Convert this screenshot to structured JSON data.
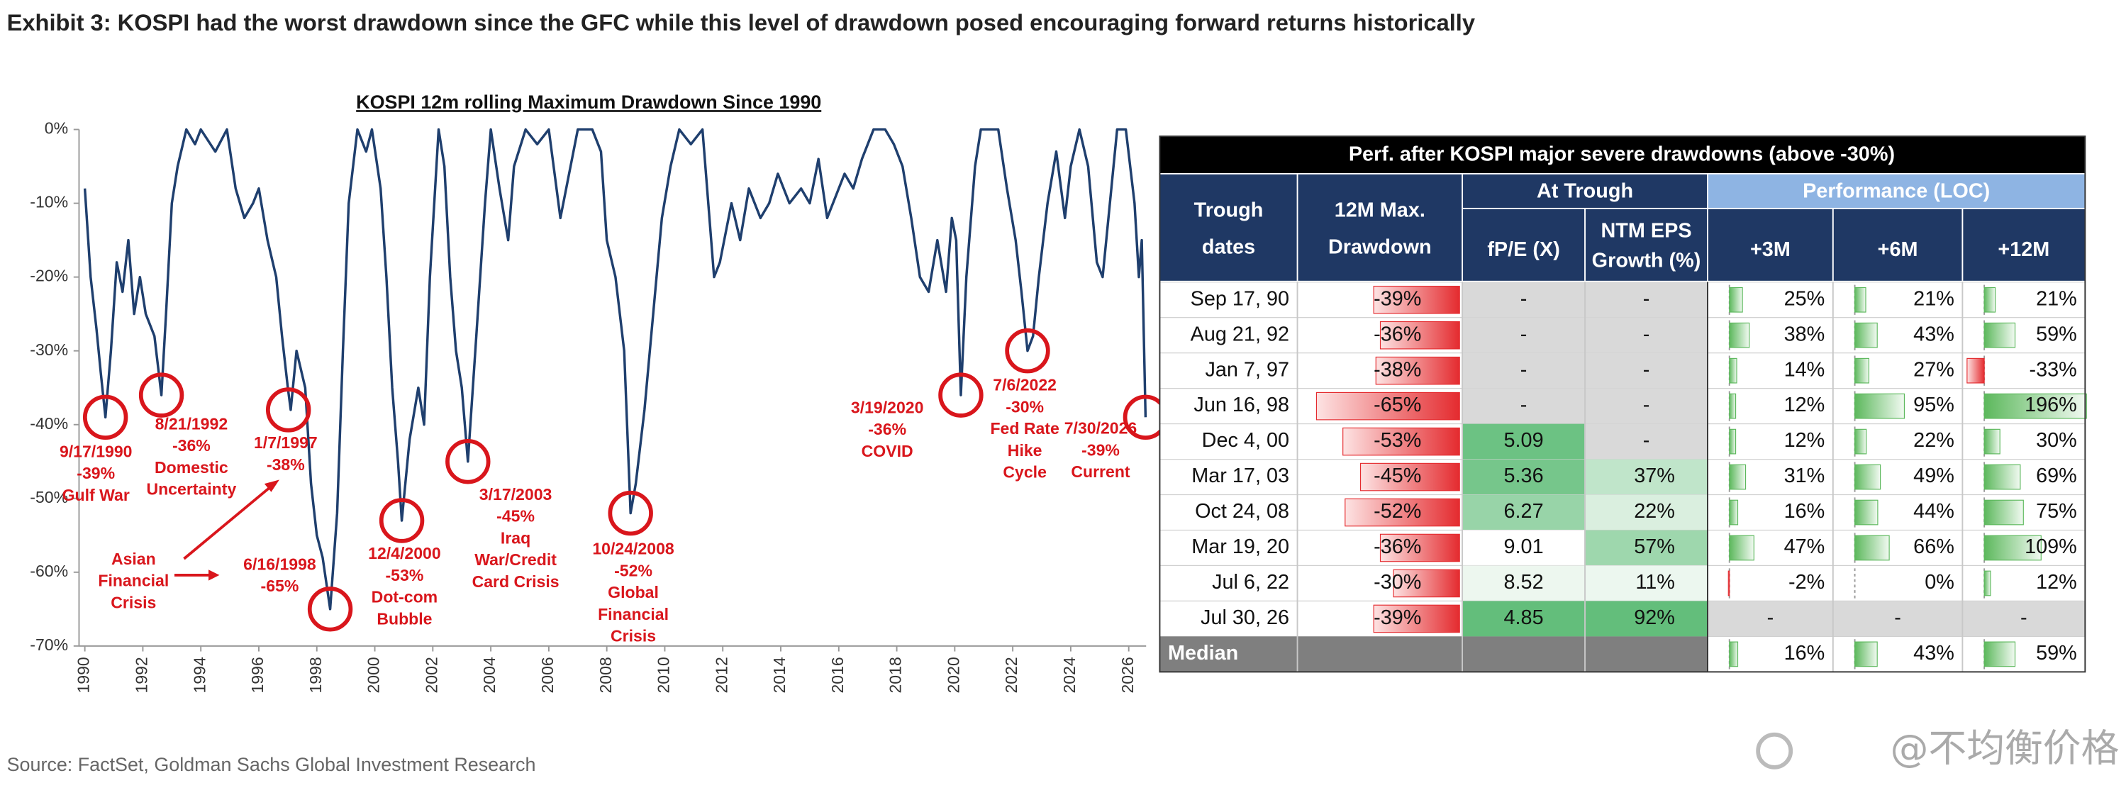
{
  "exhibit_title": "Exhibit 3: KOSPI had the worst drawdown since the GFC while this level of drawdown posed encouraging forward returns historically",
  "source": "Source: FactSet, Goldman Sachs Global Investment Research",
  "watermark": "@不均衡价格",
  "chart_data": {
    "type": "line",
    "title": "KOSPI 12m rolling Maximum Drawdown Since 1990",
    "color": "#1f3f6e",
    "x": [
      1990.0,
      1990.2,
      1990.4,
      1990.55,
      1990.71,
      1990.9,
      1991.1,
      1991.3,
      1991.5,
      1991.7,
      1991.9,
      1992.1,
      1992.4,
      1992.64,
      1992.8,
      1993.0,
      1993.2,
      1993.5,
      1993.8,
      1994.0,
      1994.5,
      1994.9,
      1995.2,
      1995.5,
      1995.8,
      1996.0,
      1996.3,
      1996.6,
      1996.8,
      1997.0,
      1997.1,
      1997.3,
      1997.6,
      1997.8,
      1998.0,
      1998.2,
      1998.46,
      1998.7,
      1998.9,
      1999.1,
      1999.4,
      1999.7,
      1999.9,
      2000.2,
      2000.4,
      2000.6,
      2000.8,
      2000.93,
      2001.2,
      2001.5,
      2001.7,
      2001.9,
      2002.2,
      2002.4,
      2002.6,
      2002.8,
      2003.0,
      2003.21,
      2003.5,
      2003.8,
      2004.0,
      2004.3,
      2004.6,
      2004.8,
      2005.2,
      2005.6,
      2006.0,
      2006.4,
      2006.6,
      2007.0,
      2007.5,
      2007.8,
      2008.0,
      2008.3,
      2008.6,
      2008.75,
      2008.82,
      2009.0,
      2009.3,
      2009.6,
      2009.9,
      2010.2,
      2010.5,
      2010.9,
      2011.3,
      2011.7,
      2011.9,
      2012.3,
      2012.6,
      2012.9,
      2013.3,
      2013.6,
      2013.9,
      2014.3,
      2014.7,
      2015.0,
      2015.3,
      2015.6,
      2015.9,
      2016.2,
      2016.5,
      2016.8,
      2017.2,
      2017.6,
      2017.9,
      2018.2,
      2018.5,
      2018.8,
      2019.1,
      2019.4,
      2019.7,
      2019.9,
      2020.05,
      2020.21,
      2020.4,
      2020.7,
      2020.9,
      2021.2,
      2021.5,
      2021.8,
      2022.1,
      2022.3,
      2022.51,
      2022.7,
      2022.9,
      2023.2,
      2023.5,
      2023.8,
      2024.0,
      2024.3,
      2024.6,
      2024.9,
      2025.1,
      2025.4,
      2025.6,
      2025.9,
      2026.2,
      2026.35,
      2026.45,
      2026.58
    ],
    "values": [
      -8,
      -20,
      -27,
      -33,
      -39,
      -30,
      -18,
      -22,
      -15,
      -25,
      -20,
      -25,
      -28,
      -36,
      -25,
      -10,
      -5,
      0,
      -2,
      0,
      -3,
      0,
      -8,
      -12,
      -10,
      -8,
      -15,
      -20,
      -28,
      -35,
      -38,
      -30,
      -35,
      -48,
      -55,
      -58,
      -65,
      -52,
      -30,
      -10,
      0,
      -3,
      0,
      -8,
      -20,
      -35,
      -45,
      -53,
      -42,
      -35,
      -40,
      -20,
      0,
      -5,
      -20,
      -30,
      -35,
      -45,
      -28,
      -10,
      0,
      -8,
      -15,
      -5,
      0,
      -2,
      0,
      -12,
      -8,
      0,
      0,
      -3,
      -15,
      -20,
      -30,
      -45,
      -52,
      -48,
      -38,
      -25,
      -12,
      -5,
      0,
      -2,
      0,
      -20,
      -18,
      -10,
      -15,
      -8,
      -12,
      -10,
      -6,
      -10,
      -8,
      -10,
      -4,
      -12,
      -9,
      -6,
      -8,
      -4,
      0,
      0,
      -2,
      -5,
      -12,
      -20,
      -22,
      -15,
      -22,
      -12,
      -15,
      -36,
      -20,
      -5,
      0,
      0,
      0,
      -8,
      -15,
      -22,
      -30,
      -28,
      -20,
      -10,
      -3,
      -12,
      -5,
      0,
      -5,
      -18,
      -20,
      -8,
      0,
      0,
      -10,
      -20,
      -15,
      -39
    ],
    "xlim": [
      1989.8,
      2026.6
    ],
    "ylim": [
      -70,
      0
    ],
    "xticks": [
      1990,
      1992,
      1994,
      1996,
      1998,
      2000,
      2002,
      2004,
      2006,
      2008,
      2010,
      2012,
      2014,
      2016,
      2018,
      2020,
      2022,
      2024,
      2026
    ],
    "yticks": [
      {
        "value": 0,
        "label": "0%"
      },
      {
        "value": -10,
        "label": "-10%"
      },
      {
        "value": -20,
        "label": "-20%"
      },
      {
        "value": -30,
        "label": "-30%"
      },
      {
        "value": -40,
        "label": "-40%"
      },
      {
        "value": -50,
        "label": "-50%"
      },
      {
        "value": -60,
        "label": "-60%"
      },
      {
        "value": -70,
        "label": "-70%"
      }
    ],
    "annotations": [
      {
        "x": 1990.71,
        "y": -39,
        "text": [
          "9/17/1990",
          "-39%",
          "Gulf War"
        ]
      },
      {
        "x": 1992.64,
        "y": -36,
        "text": [
          "8/21/1992",
          "-36%",
          "Domestic",
          "Uncertainty"
        ]
      },
      {
        "x": 1997.02,
        "y": -38,
        "text": [
          "1/7/1997",
          "-38%"
        ]
      },
      {
        "x": 1998.46,
        "y": -65,
        "text": [
          "6/16/1998",
          "-65%"
        ]
      },
      {
        "x": 2000.93,
        "y": -53,
        "text": [
          "12/4/2000",
          "-53%",
          "Dot-com",
          "Bubble"
        ]
      },
      {
        "x": 2003.21,
        "y": -45,
        "text": [
          "3/17/2003",
          "-45%",
          "Iraq",
          "War/Credit",
          "Card Crisis"
        ]
      },
      {
        "x": 2008.82,
        "y": -52,
        "text": [
          "10/24/2008",
          "-52%",
          "Global",
          "Financial",
          "Crisis"
        ]
      },
      {
        "x": 2020.21,
        "y": -36,
        "text": [
          "3/19/2020",
          "-36%",
          "COVID"
        ]
      },
      {
        "x": 2022.51,
        "y": -30,
        "text": [
          "7/6/2022",
          "-30%",
          "Fed Rate",
          "Hike",
          "Cycle"
        ]
      },
      {
        "x": 2026.58,
        "y": -39,
        "text": [
          "7/30/2026",
          "-39%",
          "Current"
        ]
      }
    ],
    "callout": [
      "Asian",
      "Financial",
      "Crisis"
    ]
  },
  "table": {
    "title": "Perf. after KOSPI major severe drawdowns (above -30%)",
    "group_headers": [
      "At Trough",
      "Performance (LOC)"
    ],
    "header": [
      [
        "Trough",
        "dates"
      ],
      [
        "12M Max.",
        "Drawdown"
      ],
      [
        "fP/E (X)"
      ],
      [
        "NTM EPS",
        "Growth (%)"
      ],
      [
        "+3M"
      ],
      [
        "+6M"
      ],
      [
        "+12M"
      ]
    ],
    "rows": [
      {
        "date": "Sep 17, 90",
        "values": [
          -39,
          null,
          null,
          25,
          21,
          21
        ],
        "value_labels": [
          "-39%",
          "-",
          "-",
          "25%",
          "21%",
          "21%"
        ]
      },
      {
        "date": "Aug 21, 92",
        "values": [
          -36,
          null,
          null,
          38,
          43,
          59
        ],
        "value_labels": [
          "-36%",
          "-",
          "-",
          "38%",
          "43%",
          "59%"
        ]
      },
      {
        "date": "Jan 7, 97",
        "values": [
          -38,
          null,
          null,
          14,
          27,
          -33
        ],
        "value_labels": [
          "-38%",
          "-",
          "-",
          "14%",
          "27%",
          "-33%"
        ]
      },
      {
        "date": "Jun 16, 98",
        "values": [
          -65,
          null,
          null,
          12,
          95,
          196
        ],
        "value_labels": [
          "-65%",
          "-",
          "-",
          "12%",
          "95%",
          "196%"
        ]
      },
      {
        "date": "Dec 4, 00",
        "values": [
          -53,
          5.09,
          null,
          12,
          22,
          30
        ],
        "value_labels": [
          "-53%",
          "5.09",
          "-",
          "12%",
          "22%",
          "30%"
        ]
      },
      {
        "date": "Mar 17, 03",
        "values": [
          -45,
          5.36,
          37,
          31,
          49,
          69
        ],
        "value_labels": [
          "-45%",
          "5.36",
          "37%",
          "31%",
          "49%",
          "69%"
        ]
      },
      {
        "date": "Oct 24, 08",
        "values": [
          -52,
          6.27,
          22,
          16,
          44,
          75
        ],
        "value_labels": [
          "-52%",
          "6.27",
          "22%",
          "16%",
          "44%",
          "75%"
        ]
      },
      {
        "date": "Mar 19, 20",
        "values": [
          -36,
          9.01,
          57,
          47,
          66,
          109
        ],
        "value_labels": [
          "-36%",
          "9.01",
          "57%",
          "47%",
          "66%",
          "109%"
        ]
      },
      {
        "date": "Jul 6, 22",
        "values": [
          -30,
          8.52,
          11,
          -2,
          0,
          12
        ],
        "value_labels": [
          "-30%",
          "8.52",
          "11%",
          "-2%",
          "0%",
          "12%"
        ]
      },
      {
        "date": "Jul 30, 26",
        "values": [
          -39,
          4.85,
          92,
          null,
          null,
          null
        ],
        "value_labels": [
          "-39%",
          "4.85",
          "92%",
          "-",
          "-",
          "-"
        ]
      }
    ],
    "median": {
      "label": "Median",
      "values": [
        16,
        43,
        59
      ],
      "value_labels": [
        "16%",
        "43%",
        "59%"
      ]
    }
  }
}
